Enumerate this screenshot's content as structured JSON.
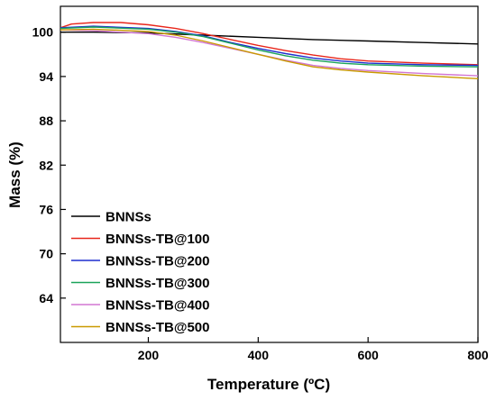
{
  "chart_data": {
    "type": "line",
    "xlabel": "Temperature (ºC)",
    "ylabel": "Mass (%)",
    "xlim": [
      40,
      800
    ],
    "ylim": [
      58,
      103.5
    ],
    "xticks": [
      200,
      400,
      600,
      800
    ],
    "yticks": [
      64,
      70,
      76,
      82,
      88,
      94,
      100
    ],
    "grid": false,
    "legend_position": "bottom-left",
    "series": [
      {
        "name": "BNNSs",
        "color": "#000000",
        "x": [
          40,
          100,
          200,
          300,
          400,
          500,
          600,
          700,
          800
        ],
        "y": [
          100.0,
          100.0,
          99.9,
          99.6,
          99.3,
          99.0,
          98.8,
          98.6,
          98.4
        ]
      },
      {
        "name": "BNNSs-TB@100",
        "color": "#e8261b",
        "x": [
          40,
          60,
          100,
          150,
          200,
          250,
          300,
          350,
          400,
          450,
          500,
          550,
          600,
          700,
          800
        ],
        "y": [
          100.6,
          101.1,
          101.3,
          101.3,
          101.0,
          100.5,
          99.8,
          99.0,
          98.2,
          97.5,
          96.9,
          96.4,
          96.1,
          95.8,
          95.6
        ]
      },
      {
        "name": "BNNSs-TB@200",
        "color": "#1f2fcf",
        "x": [
          40,
          100,
          200,
          250,
          300,
          350,
          400,
          450,
          500,
          550,
          600,
          700,
          800
        ],
        "y": [
          100.6,
          100.8,
          100.5,
          100.1,
          99.5,
          98.6,
          97.8,
          97.1,
          96.5,
          96.1,
          95.8,
          95.6,
          95.5
        ]
      },
      {
        "name": "BNNSs-TB@300",
        "color": "#1aa35a",
        "x": [
          40,
          100,
          200,
          250,
          300,
          350,
          400,
          450,
          500,
          550,
          600,
          700,
          800
        ],
        "y": [
          100.5,
          100.7,
          100.4,
          100.0,
          99.4,
          98.5,
          97.6,
          96.8,
          96.2,
          95.8,
          95.6,
          95.4,
          95.3
        ]
      },
      {
        "name": "BNNSs-TB@400",
        "color": "#d276d2",
        "x": [
          40,
          100,
          200,
          250,
          300,
          350,
          400,
          450,
          500,
          550,
          600,
          700,
          800
        ],
        "y": [
          100.3,
          100.2,
          99.8,
          99.3,
          98.6,
          97.8,
          97.0,
          96.2,
          95.5,
          95.1,
          94.8,
          94.4,
          94.1
        ]
      },
      {
        "name": "BNNSs-TB@500",
        "color": "#c99a00",
        "x": [
          40,
          100,
          200,
          250,
          300,
          350,
          400,
          450,
          500,
          550,
          600,
          700,
          800
        ],
        "y": [
          100.3,
          100.4,
          100.1,
          99.6,
          98.8,
          97.9,
          97.0,
          96.1,
          95.3,
          94.9,
          94.6,
          94.1,
          93.7
        ]
      }
    ]
  }
}
